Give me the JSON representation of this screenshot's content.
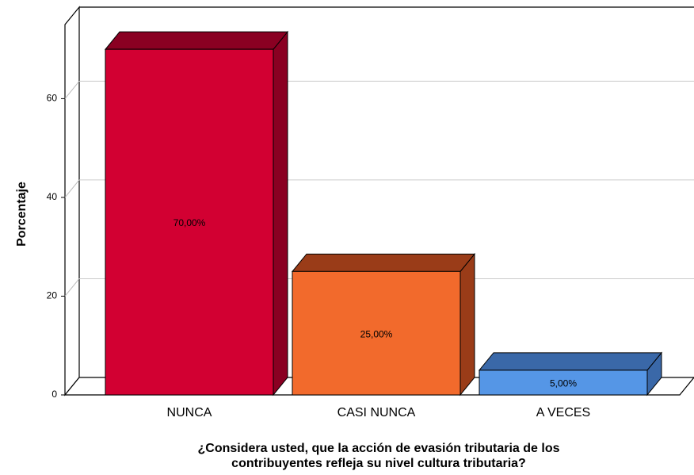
{
  "chart_data": {
    "type": "bar3d",
    "ylabel": "Porcentaje",
    "xlabel": [
      "¿Considera usted, que la acción de evasión tributaria de los",
      "contribuyentes refleja su nivel cultura tributaria?"
    ],
    "categories": [
      "NUNCA",
      "CASI NUNCA",
      "A VECES"
    ],
    "values": [
      70,
      25,
      5
    ],
    "value_labels": [
      "70,00%",
      "25,00%",
      "5,00%"
    ],
    "colors": [
      "#d20032",
      "#f26a2c",
      "#5596e6"
    ],
    "side_colors": [
      "#8a0022",
      "#9a3c18",
      "#3a68a8"
    ],
    "ylim": [
      0,
      75
    ],
    "yticks": [
      0,
      20,
      40,
      60
    ],
    "grid": true
  }
}
